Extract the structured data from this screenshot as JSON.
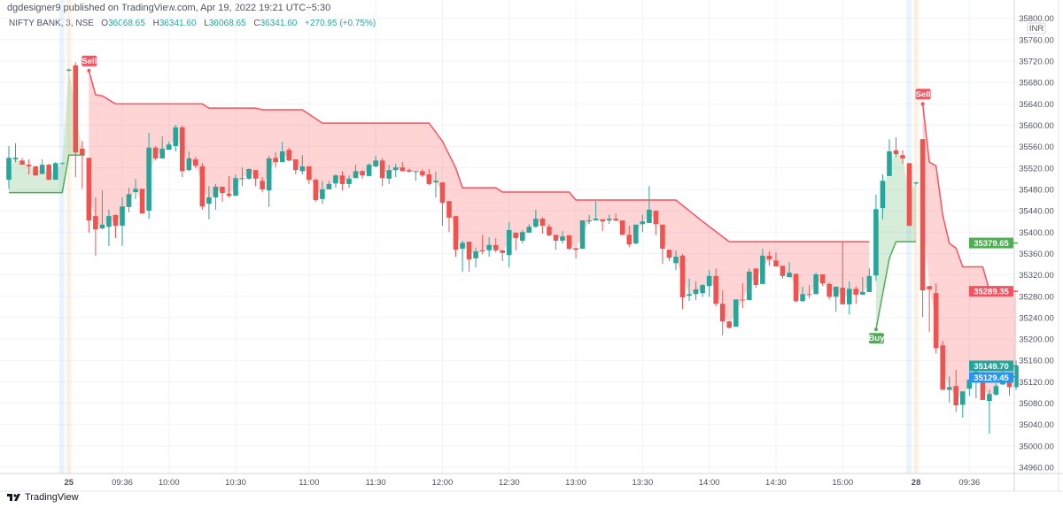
{
  "header": {
    "published": "dgdesigner9 published on TradingView.com, Apr 19, 2022 19:21 UTC+5:30",
    "symbol": "NIFTY BANK, 3, NSE",
    "o_label": "O",
    "o": "36068.65",
    "h_label": "H",
    "h": "36341.60",
    "l_label": "L",
    "l": "36068.65",
    "c_label": "C",
    "c": "36341.60",
    "change": "+270.95 (+0.75%)"
  },
  "footer": {
    "brand": "TradingView"
  },
  "colors": {
    "up": "#26a69a",
    "down": "#ef5350",
    "supertrend_up": "#4caf50",
    "supertrend_down": "#f7525f",
    "fill_up": "rgba(76,175,80,0.22)",
    "fill_down": "rgba(255,82,82,0.25)",
    "last_price": "#26a69a",
    "blue_label": "#2196f3"
  },
  "chart_data": {
    "type": "candlestick",
    "currency": "INR",
    "ylim": [
      34960,
      35800
    ],
    "grid": true,
    "y_ticks": [
      "35800.00",
      "35760.00",
      "35720.00",
      "35680.00",
      "35640.00",
      "35600.00",
      "35560.00",
      "35520.00",
      "35480.00",
      "35440.00",
      "35400.00",
      "35360.00",
      "35320.00",
      "35280.00",
      "35240.00",
      "35200.00",
      "35160.00",
      "35120.00",
      "35080.00",
      "35040.00",
      "35000.00",
      "34960.00"
    ],
    "x_ticks": [
      {
        "label": "25",
        "bar": 9,
        "bold": true
      },
      {
        "label": "09:36",
        "bar": 17
      },
      {
        "label": "10:00",
        "bar": 24
      },
      {
        "label": "10:30",
        "bar": 34
      },
      {
        "label": "11:00",
        "bar": 45
      },
      {
        "label": "11:30",
        "bar": 55
      },
      {
        "label": "12:00",
        "bar": 65
      },
      {
        "label": "12:30",
        "bar": 75
      },
      {
        "label": "13:00",
        "bar": 85
      },
      {
        "label": "13:30",
        "bar": 95
      },
      {
        "label": "14:00",
        "bar": 105
      },
      {
        "label": "14:30",
        "bar": 115
      },
      {
        "label": "15:00",
        "bar": 125
      },
      {
        "label": "28",
        "bar": 136,
        "bold": true
      },
      {
        "label": "09:36",
        "bar": 144
      }
    ],
    "session_breaks": [
      9,
      136
    ],
    "candles_ohlc": [
      [
        35498,
        35561,
        35481,
        35539
      ],
      [
        35536,
        35566,
        35531,
        35539
      ],
      [
        35534,
        35539,
        35526,
        35526
      ],
      [
        35526,
        35536,
        35508,
        35523
      ],
      [
        35523,
        35524,
        35505,
        35506
      ],
      [
        35509,
        35536,
        35508,
        35526
      ],
      [
        35526,
        35528,
        35498,
        35498
      ],
      [
        35498,
        35531,
        35498,
        35529
      ],
      [
        35529,
        35531,
        35528,
        35529
      ],
      [
        35702,
        35706,
        35700,
        35704
      ],
      [
        35712,
        35718,
        35503,
        35549
      ],
      [
        35556,
        35571,
        35481,
        35543
      ],
      [
        35539,
        35539,
        35399,
        35422
      ],
      [
        35430,
        35465,
        35356,
        35405
      ],
      [
        35407,
        35478,
        35405,
        35414
      ],
      [
        35410,
        35442,
        35374,
        35430
      ],
      [
        35432,
        35433,
        35389,
        35412
      ],
      [
        35412,
        35465,
        35374,
        35448
      ],
      [
        35447,
        35483,
        35437,
        35471
      ],
      [
        35475,
        35499,
        35462,
        35481
      ],
      [
        35481,
        35481,
        35435,
        35435
      ],
      [
        35440,
        35586,
        35425,
        35558
      ],
      [
        35558,
        35561,
        35534,
        35538
      ],
      [
        35538,
        35579,
        35538,
        35556
      ],
      [
        35554,
        35569,
        35554,
        35564
      ],
      [
        35561,
        35601,
        35551,
        35596
      ],
      [
        35596,
        35599,
        35503,
        35514
      ],
      [
        35516,
        35551,
        35514,
        35538
      ],
      [
        35536,
        35541,
        35519,
        35524
      ],
      [
        35523,
        35529,
        35442,
        35448
      ],
      [
        35453,
        35486,
        35424,
        35465
      ],
      [
        35465,
        35490,
        35442,
        35485
      ],
      [
        35485,
        35485,
        35457,
        35473
      ],
      [
        35472,
        35505,
        35465,
        35468
      ],
      [
        35468,
        35508,
        35468,
        35501
      ],
      [
        35501,
        35521,
        35486,
        35501
      ],
      [
        35500,
        35519,
        35498,
        35518
      ],
      [
        35516,
        35516,
        35486,
        35500
      ],
      [
        35496,
        35503,
        35475,
        35480
      ],
      [
        35478,
        35543,
        35447,
        35538
      ],
      [
        35539,
        35549,
        35521,
        35531
      ],
      [
        35531,
        35569,
        35531,
        35551
      ],
      [
        35554,
        35558,
        35533,
        35534
      ],
      [
        35536,
        35536,
        35508,
        35516
      ],
      [
        35514,
        35544,
        35508,
        35523
      ],
      [
        35523,
        35523,
        35490,
        35498
      ],
      [
        35498,
        35500,
        35457,
        35460
      ],
      [
        35462,
        35496,
        35453,
        35480
      ],
      [
        35480,
        35496,
        35480,
        35490
      ],
      [
        35491,
        35508,
        35483,
        35506
      ],
      [
        35506,
        35514,
        35478,
        35490
      ],
      [
        35490,
        35506,
        35483,
        35500
      ],
      [
        35501,
        35526,
        35501,
        35514
      ],
      [
        35514,
        35516,
        35500,
        35506
      ],
      [
        35505,
        35529,
        35505,
        35526
      ],
      [
        35523,
        35543,
        35521,
        35534
      ],
      [
        35534,
        35538,
        35486,
        35501
      ],
      [
        35500,
        35526,
        35490,
        35516
      ],
      [
        35516,
        35528,
        35503,
        35521
      ],
      [
        35521,
        35531,
        35514,
        35514
      ],
      [
        35516,
        35519,
        35511,
        35513
      ],
      [
        35513,
        35514,
        35496,
        35514
      ],
      [
        35514,
        35518,
        35503,
        35506
      ],
      [
        35508,
        35518,
        35488,
        35490
      ],
      [
        35493,
        35513,
        35465,
        35496
      ],
      [
        35493,
        35493,
        35412,
        35455
      ],
      [
        35458,
        35458,
        35400,
        35427
      ],
      [
        35430,
        35430,
        35354,
        35367
      ],
      [
        35369,
        35384,
        35326,
        35380
      ],
      [
        35382,
        35382,
        35326,
        35349
      ],
      [
        35351,
        35371,
        35334,
        35364
      ],
      [
        35366,
        35395,
        35359,
        35364
      ],
      [
        35366,
        35391,
        35354,
        35376
      ],
      [
        35376,
        35389,
        35362,
        35366
      ],
      [
        35366,
        35366,
        35346,
        35361
      ],
      [
        35357,
        35419,
        35334,
        35404
      ],
      [
        35399,
        35399,
        35366,
        35389
      ],
      [
        35384,
        35404,
        35379,
        35400
      ],
      [
        35399,
        35415,
        35399,
        35410
      ],
      [
        35410,
        35442,
        35408,
        35425
      ],
      [
        35425,
        35428,
        35397,
        35412
      ],
      [
        35410,
        35415,
        35392,
        35394
      ],
      [
        35395,
        35395,
        35367,
        35384
      ],
      [
        35384,
        35402,
        35379,
        35392
      ],
      [
        35394,
        35394,
        35367,
        35369
      ],
      [
        35370,
        35370,
        35351,
        35367
      ],
      [
        35369,
        35422,
        35369,
        35422
      ],
      [
        35420,
        35432,
        35415,
        35422
      ],
      [
        35422,
        35458,
        35422,
        35425
      ],
      [
        35424,
        35424,
        35402,
        35420
      ],
      [
        35422,
        35433,
        35415,
        35425
      ],
      [
        35425,
        35435,
        35420,
        35422
      ],
      [
        35422,
        35422,
        35394,
        35395
      ],
      [
        35395,
        35412,
        35372,
        35377
      ],
      [
        35379,
        35414,
        35377,
        35414
      ],
      [
        35415,
        35433,
        35400,
        35420
      ],
      [
        35417,
        35486,
        35417,
        35442
      ],
      [
        35440,
        35440,
        35395,
        35415
      ],
      [
        35414,
        35414,
        35341,
        35369
      ],
      [
        35367,
        35367,
        35346,
        35352
      ],
      [
        35342,
        35366,
        35329,
        35354
      ],
      [
        35356,
        35359,
        35256,
        35278
      ],
      [
        35281,
        35313,
        35271,
        35284
      ],
      [
        35284,
        35308,
        35273,
        35293
      ],
      [
        35286,
        35303,
        35279,
        35301
      ],
      [
        35299,
        35329,
        35279,
        35318
      ],
      [
        35318,
        35332,
        35261,
        35266
      ],
      [
        35266,
        35291,
        35207,
        35233
      ],
      [
        35233,
        35233,
        35220,
        35221
      ],
      [
        35223,
        35274,
        35223,
        35274
      ],
      [
        35274,
        35304,
        35258,
        35273
      ],
      [
        35273,
        35332,
        35273,
        35326
      ],
      [
        35332,
        35332,
        35296,
        35301
      ],
      [
        35303,
        35369,
        35303,
        35356
      ],
      [
        35356,
        35364,
        35337,
        35349
      ],
      [
        35347,
        35362,
        35336,
        35336
      ],
      [
        35337,
        35337,
        35313,
        35318
      ],
      [
        35316,
        35344,
        35316,
        35324
      ],
      [
        35322,
        35322,
        35269,
        35271
      ],
      [
        35271,
        35298,
        35269,
        35284
      ],
      [
        35284,
        35301,
        35276,
        35283
      ],
      [
        35284,
        35324,
        35284,
        35321
      ],
      [
        35321,
        35321,
        35299,
        35304
      ],
      [
        35303,
        35306,
        35274,
        35279
      ],
      [
        35279,
        35298,
        35251,
        35298
      ],
      [
        35296,
        35382,
        35265,
        35265
      ],
      [
        35265,
        35308,
        35246,
        35294
      ],
      [
        35294,
        35299,
        35266,
        35283
      ],
      [
        35283,
        35316,
        35283,
        35288
      ],
      [
        35288,
        35332,
        35288,
        35318
      ],
      [
        35319,
        35470,
        35309,
        35443
      ],
      [
        35445,
        35508,
        35424,
        35496
      ],
      [
        35505,
        35574,
        35505,
        35551
      ],
      [
        35553,
        35577,
        35541,
        35546
      ],
      [
        35544,
        35553,
        35528,
        35538
      ],
      [
        35529,
        35529,
        35412,
        35412
      ],
      [
        35491,
        35494,
        35489,
        35493
      ],
      [
        35574,
        35574,
        35241,
        35291
      ],
      [
        35299,
        35299,
        35213,
        35293
      ],
      [
        35286,
        35304,
        35173,
        35183
      ],
      [
        35188,
        35197,
        35105,
        35105
      ],
      [
        35105,
        35130,
        35081,
        35110
      ],
      [
        35112,
        35142,
        35064,
        35076
      ],
      [
        35077,
        35102,
        35053,
        35102
      ],
      [
        35107,
        35127,
        35094,
        35124
      ],
      [
        35125,
        35142,
        35089,
        35139
      ],
      [
        35135,
        35139,
        35086,
        35086
      ],
      [
        35084,
        35105,
        35023,
        35097
      ],
      [
        35096,
        35117,
        35094,
        35112
      ],
      [
        35115,
        35150,
        35114,
        35135
      ],
      [
        35135,
        35135,
        35094,
        35110
      ],
      [
        35110,
        35160,
        35105,
        35149.7
      ]
    ],
    "supertrend": [
      {
        "direction": "up",
        "points": [
          [
            0,
            35474
          ],
          [
            8,
            35474
          ],
          [
            9,
            35544
          ],
          [
            11,
            35544
          ]
        ]
      },
      {
        "direction": "down",
        "points": [
          [
            12,
            35702
          ],
          [
            13,
            35657
          ],
          [
            14,
            35655
          ],
          [
            16,
            35640
          ],
          [
            29,
            35640
          ],
          [
            30,
            35632
          ],
          [
            37,
            35632
          ],
          [
            38,
            35629
          ],
          [
            44,
            35629
          ],
          [
            47,
            35604
          ],
          [
            63,
            35604
          ],
          [
            65,
            35570
          ],
          [
            67,
            35520
          ],
          [
            68,
            35483
          ],
          [
            73,
            35483
          ],
          [
            74,
            35475
          ],
          [
            84,
            35475
          ],
          [
            85,
            35460
          ],
          [
            100,
            35460
          ],
          [
            104,
            35420
          ],
          [
            108,
            35382
          ],
          [
            129,
            35382
          ]
        ]
      },
      {
        "direction": "up",
        "points": [
          [
            130,
            35218
          ],
          [
            132,
            35351
          ],
          [
            133,
            35382
          ],
          [
            136,
            35382
          ]
        ]
      },
      {
        "direction": "down",
        "points": [
          [
            137,
            35640
          ],
          [
            138,
            35531
          ],
          [
            139,
            35524
          ],
          [
            140,
            35432
          ],
          [
            141,
            35379
          ],
          [
            142,
            35370
          ],
          [
            143,
            35335
          ],
          [
            146,
            35335
          ],
          [
            147,
            35291
          ],
          [
            151,
            35289.35
          ]
        ]
      }
    ],
    "signals": [
      {
        "label": "Sell",
        "bar": 12,
        "price": 35702,
        "type": "sell"
      },
      {
        "label": "Buy",
        "bar": 130,
        "price": 35218,
        "type": "buy"
      },
      {
        "label": "Sell",
        "bar": 137,
        "price": 35640,
        "type": "sell"
      }
    ],
    "price_labels": [
      {
        "text": "35379.65",
        "value": 35379.65,
        "color": "#4caf50"
      },
      {
        "text": "35289.35",
        "value": 35289.35,
        "color": "#f7525f"
      },
      {
        "text": "35149.70",
        "value": 35149.7,
        "color": "#26a69a"
      },
      {
        "text": "35129.45",
        "value": 35129.45,
        "color": "#2196f3"
      }
    ]
  }
}
